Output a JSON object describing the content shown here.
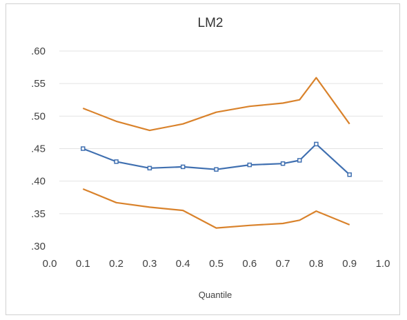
{
  "chart_data": {
    "type": "line",
    "title": "LM2",
    "xlabel": "Quantile",
    "ylabel": "",
    "xlim": [
      0.0,
      1.0
    ],
    "ylim": [
      0.3,
      0.6
    ],
    "x_tick_labels": [
      "0.0",
      "0.1",
      "0.2",
      "0.3",
      "0.4",
      "0.5",
      "0.6",
      "0.7",
      "0.8",
      "0.9",
      "1.0"
    ],
    "x_ticks": [
      0.0,
      0.1,
      0.2,
      0.3,
      0.4,
      0.5,
      0.6,
      0.7,
      0.8,
      0.9,
      1.0
    ],
    "y_tick_labels": [
      ".30",
      ".35",
      ".40",
      ".45",
      ".50",
      ".55",
      ".60"
    ],
    "y_ticks": [
      0.3,
      0.35,
      0.4,
      0.45,
      0.5,
      0.55,
      0.6
    ],
    "grid": "horizontal",
    "x": [
      0.1,
      0.2,
      0.3,
      0.4,
      0.5,
      0.6,
      0.7,
      0.75,
      0.8,
      0.9
    ],
    "series": [
      {
        "values": [
          0.512,
          0.492,
          0.478,
          0.488,
          0.506,
          0.515,
          0.52,
          0.525,
          0.559,
          0.488
        ],
        "color": "#d9822b",
        "markers": false
      },
      {
        "values": [
          0.45,
          0.43,
          0.42,
          0.422,
          0.418,
          0.425,
          0.427,
          0.432,
          0.457,
          0.41
        ],
        "color": "#3f6fb0",
        "markers": true
      },
      {
        "values": [
          0.388,
          0.367,
          0.36,
          0.355,
          0.328,
          0.332,
          0.335,
          0.34,
          0.354,
          0.333
        ],
        "color": "#d9822b",
        "markers": false
      }
    ]
  }
}
